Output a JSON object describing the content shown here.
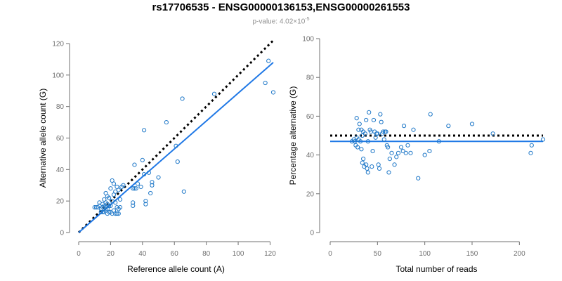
{
  "title": "rs17706535 - ENSG00000136153,ENSG00000261553",
  "subtitle": {
    "prefix": "p-value: 4.02×10",
    "exponent": "-5"
  },
  "colors": {
    "points": "#1f78c8",
    "fit": "#1f78e6",
    "reference": "#000000",
    "axis": "#707070"
  },
  "chart_data": [
    {
      "type": "scatter",
      "xlabel": "Reference allele count (A)",
      "ylabel": "Alternative allele count (G)",
      "xlim": [
        0,
        122
      ],
      "ylim": [
        0,
        120
      ],
      "xticks": [
        0,
        20,
        40,
        60,
        80,
        100,
        120
      ],
      "yticks": [
        0,
        20,
        40,
        60,
        80,
        100,
        120
      ],
      "grid": false,
      "points": {
        "x": [
          10,
          11,
          12,
          13,
          13,
          14,
          14,
          15,
          15,
          15,
          16,
          16,
          16,
          17,
          17,
          17,
          17,
          18,
          18,
          18,
          18,
          19,
          19,
          19,
          20,
          20,
          20,
          21,
          21,
          21,
          22,
          22,
          22,
          23,
          23,
          23,
          24,
          24,
          24,
          25,
          25,
          25,
          26,
          26,
          27,
          28,
          34,
          34,
          34,
          35,
          35,
          36,
          37,
          39,
          40,
          41,
          41,
          42,
          42,
          44,
          45,
          46,
          46,
          50,
          55,
          61,
          62,
          65,
          66,
          85,
          117,
          119,
          122
        ],
        "y": [
          16,
          16,
          16,
          17,
          19,
          13,
          15,
          13,
          16,
          18,
          13,
          17,
          21,
          14,
          16,
          19,
          25,
          12,
          15,
          18,
          23,
          13,
          17,
          22,
          13,
          17,
          28,
          12,
          20,
          33,
          14,
          24,
          31,
          12,
          19,
          26,
          12,
          16,
          29,
          12,
          15,
          27,
          16,
          21,
          29,
          30,
          17,
          19,
          28,
          28,
          43,
          28,
          31,
          29,
          46,
          37,
          65,
          20,
          18,
          38,
          25,
          32,
          30,
          35,
          70,
          55,
          45,
          85,
          26,
          88,
          95,
          109,
          89
        ]
      },
      "reference_line": {
        "label": "",
        "x": [
          0,
          122
        ],
        "y": [
          0,
          122
        ]
      },
      "fit_line": {
        "x": [
          0,
          122
        ],
        "y": [
          0,
          108
        ]
      }
    },
    {
      "type": "scatter",
      "xlabel": "Total number of reads",
      "ylabel": "Percentage alternative (G)",
      "xlim": [
        0,
        225
      ],
      "ylim": [
        0,
        100
      ],
      "xticks": [
        0,
        50,
        100,
        150,
        200
      ],
      "yticks": [
        0,
        20,
        40,
        60,
        80,
        100
      ],
      "grid": false,
      "points": {
        "x": [
          23,
          25,
          26,
          27,
          28,
          28,
          29,
          30,
          30,
          31,
          32,
          33,
          33,
          34,
          34,
          35,
          35,
          36,
          37,
          38,
          38,
          39,
          40,
          40,
          41,
          42,
          43,
          44,
          45,
          46,
          47,
          48,
          49,
          50,
          51,
          52,
          53,
          54,
          55,
          56,
          57,
          58,
          59,
          60,
          61,
          62,
          63,
          65,
          68,
          70,
          72,
          75,
          77,
          78,
          80,
          82,
          85,
          88,
          93,
          100,
          105,
          106,
          115,
          125,
          150,
          172,
          212,
          213,
          225
        ],
        "y": [
          47,
          48,
          47,
          45,
          59,
          49,
          44,
          53,
          48,
          56,
          47,
          43,
          53,
          50,
          36,
          52,
          38,
          34,
          51,
          58,
          35,
          33,
          31,
          47,
          62,
          53,
          52,
          34,
          42,
          58,
          52,
          49,
          51,
          51,
          35,
          33,
          61,
          57,
          51,
          52,
          48,
          52,
          52,
          45,
          44,
          31,
          38,
          41,
          35,
          39,
          41,
          44,
          42,
          55,
          41,
          45,
          41,
          53,
          28,
          40,
          42,
          61,
          47,
          55,
          56,
          51,
          41,
          45,
          48
        ]
      },
      "reference_line": {
        "label": "",
        "x": [
          0,
          225
        ],
        "y": [
          50,
          50
        ]
      },
      "fit_line": {
        "x": [
          0,
          225
        ],
        "y": [
          47,
          47
        ]
      }
    }
  ]
}
